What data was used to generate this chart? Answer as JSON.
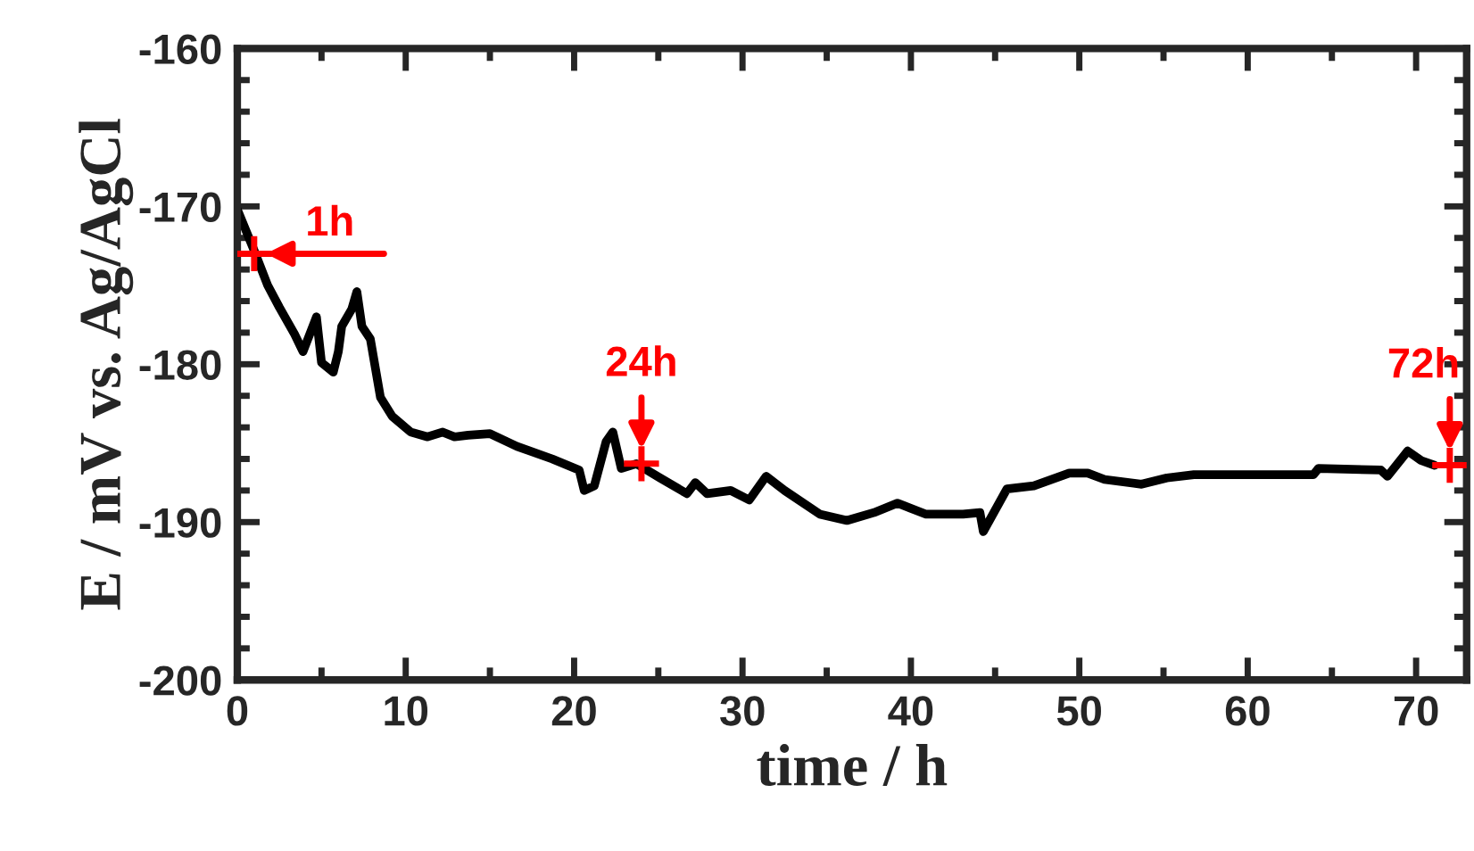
{
  "chart_data": {
    "type": "line",
    "xlabel": "time / h",
    "ylabel": "E / mV vs. Ag/AgCl",
    "xlim": [
      0,
      73
    ],
    "xticks": [
      0,
      10,
      20,
      30,
      40,
      50,
      60,
      70
    ],
    "ylim": [
      -200,
      -160
    ],
    "yticks": [
      -200,
      -190,
      -180,
      -170,
      -160
    ],
    "grid": false,
    "legend": false,
    "series": [
      {
        "color": "#000000",
        "x": [
          0,
          1,
          1.8,
          2.5,
          3.4,
          3.9,
          4.7,
          5.0,
          5.7,
          6.0,
          6.2,
          6.8,
          7.1,
          7.4,
          7.9,
          8.5,
          9.2,
          10.3,
          11.3,
          12.2,
          12.9,
          13.7,
          15.0,
          16.6,
          18.7,
          20.3,
          20.6,
          21.2,
          21.9,
          22.3,
          22.8,
          23.7,
          25.1,
          26.7,
          27.2,
          27.9,
          29.3,
          30.4,
          31.4,
          32.5,
          34.6,
          36.2,
          37.8,
          39.2,
          40.9,
          43.1,
          44.1,
          44.3,
          45.7,
          47.3,
          49.4,
          50.5,
          51.5,
          53.7,
          55.2,
          56.8,
          60.0,
          63.9,
          64.2,
          67.9,
          68.3,
          69.5,
          70.3,
          71.1
        ],
        "values": [
          -170.2,
          -172.8,
          -175.0,
          -176.4,
          -178.1,
          -179.2,
          -177.0,
          -179.9,
          -180.5,
          -179.2,
          -177.6,
          -176.5,
          -175.4,
          -177.6,
          -178.4,
          -182.1,
          -183.3,
          -184.3,
          -184.6,
          -184.3,
          -184.6,
          -184.5,
          -184.4,
          -185.2,
          -186.0,
          -186.7,
          -188.0,
          -187.7,
          -184.9,
          -184.3,
          -186.6,
          -186.3,
          -187.2,
          -188.2,
          -187.5,
          -188.2,
          -188.0,
          -188.6,
          -187.1,
          -188.0,
          -189.5,
          -189.9,
          -189.4,
          -188.8,
          -189.5,
          -189.5,
          -189.4,
          -190.6,
          -187.9,
          -187.7,
          -186.9,
          -186.9,
          -187.3,
          -187.6,
          -187.2,
          -187.0,
          -187.0,
          -187.0,
          -186.6,
          -186.7,
          -187.1,
          -185.5,
          -186.1,
          -186.4
        ]
      },
      {
        "type": "scatter",
        "color": "#ff0000",
        "marker": "cross",
        "x": [
          1,
          24,
          72
        ],
        "values": [
          -173.0,
          -186.3,
          -186.4
        ]
      }
    ],
    "annotations": [
      {
        "text": "1h",
        "x": 1,
        "y": -173.0
      },
      {
        "text": "24h",
        "x": 24,
        "y": -186.3
      },
      {
        "text": "72h",
        "x": 72,
        "y": -186.4
      }
    ]
  }
}
